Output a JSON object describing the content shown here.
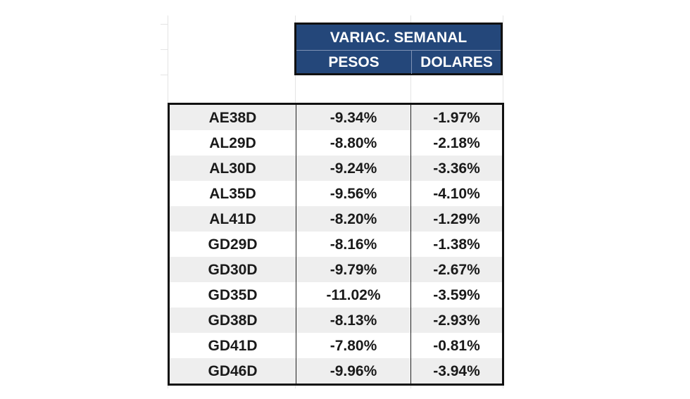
{
  "header": {
    "title": "VARIAC. SEMANAL",
    "col_pesos": "PESOS",
    "col_dolares": "DOLARES"
  },
  "rows": [
    {
      "ticker": "AE38D",
      "pesos": "-9.34%",
      "dolares": "-1.97%"
    },
    {
      "ticker": "AL29D",
      "pesos": "-8.80%",
      "dolares": "-2.18%"
    },
    {
      "ticker": "AL30D",
      "pesos": "-9.24%",
      "dolares": "-3.36%"
    },
    {
      "ticker": "AL35D",
      "pesos": "-9.56%",
      "dolares": "-4.10%"
    },
    {
      "ticker": "AL41D",
      "pesos": "-8.20%",
      "dolares": "-1.29%"
    },
    {
      "ticker": "GD29D",
      "pesos": "-8.16%",
      "dolares": "-1.38%"
    },
    {
      "ticker": "GD30D",
      "pesos": "-9.79%",
      "dolares": "-2.67%"
    },
    {
      "ticker": "GD35D",
      "pesos": "-11.02%",
      "dolares": "-3.59%"
    },
    {
      "ticker": "GD38D",
      "pesos": "-8.13%",
      "dolares": "-2.93%"
    },
    {
      "ticker": "GD41D",
      "pesos": "-7.80%",
      "dolares": "-0.81%"
    },
    {
      "ticker": "GD46D",
      "pesos": "-9.96%",
      "dolares": "-3.94%"
    }
  ],
  "colors": {
    "header_bg": "#24477a",
    "header_text": "#ffffff",
    "row_alt_bg": "#eeeeee"
  }
}
